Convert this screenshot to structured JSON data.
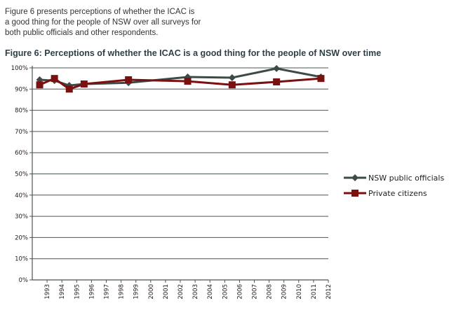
{
  "intro": {
    "lines": [
      "Figure 6 presents perceptions of whether the ICAC is",
      "a good thing for the people of NSW over all surveys for",
      "both public officials and other respondents."
    ]
  },
  "chart_data": {
    "type": "line",
    "title": "Figure 6: Perceptions of whether the ICAC is a good thing for the people of NSW over time",
    "xlabel": "",
    "ylabel": "",
    "x_tick_labels": [
      "1993",
      "1994",
      "1995",
      "1996",
      "1997",
      "1998",
      "1999",
      "2000",
      "2001",
      "2002",
      "2003",
      "2004",
      "2005",
      "2006",
      "2007",
      "2008",
      "2009",
      "2010",
      "2011",
      "2012"
    ],
    "y_tick_labels": [
      "0%",
      "10%",
      "20%",
      "30%",
      "40%",
      "50%",
      "60%",
      "70%",
      "80%",
      "90%",
      "100%"
    ],
    "xlim": [
      1992,
      2012
    ],
    "ylim": [
      0,
      100
    ],
    "grid": true,
    "legend_position": "right",
    "x": [
      1992.5,
      1993.5,
      1994.5,
      1995.5,
      1998.5,
      2002.5,
      2005.5,
      2008.5,
      2011.5
    ],
    "series": [
      {
        "name": "NSW public officials",
        "color": "#3d4b48",
        "marker": "diamond",
        "values": [
          94.4,
          94,
          91.7,
          92.4,
          93,
          95.7,
          95.4,
          99.7,
          95.7
        ]
      },
      {
        "name": "Private citizens",
        "color": "#7a1010",
        "marker": "square",
        "values": [
          92,
          95,
          90,
          92.4,
          94.4,
          93.7,
          92,
          93.4,
          95
        ]
      }
    ]
  }
}
